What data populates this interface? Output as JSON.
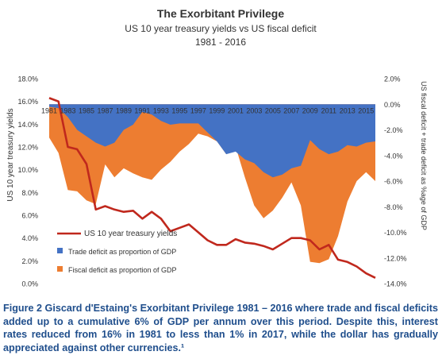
{
  "chart_data": {
    "type": "area+line",
    "title": "The Exorbitant Privilege",
    "subtitle": "US 10 year treasury yields vs US fiscal deficit",
    "subtitle2": "1981 - 2016",
    "ylabel_left": "US 10 year treasury yields",
    "ylabel_right": "US fiscal deficit + trade deficit as %age of GDP",
    "ylim_left": [
      0,
      18
    ],
    "ylim_right": [
      -14,
      2
    ],
    "yticks_left": [
      "0.0%",
      "2.0%",
      "4.0%",
      "6.0%",
      "8.0%",
      "10.0%",
      "12.0%",
      "14.0%",
      "16.0%",
      "18.0%"
    ],
    "yticks_right": [
      "-14.0%",
      "-12.0%",
      "-10.0%",
      "-8.0%",
      "-6.0%",
      "-4.0%",
      "-2.0%",
      "0.0%",
      "2.0%"
    ],
    "x": [
      1981,
      1982,
      1983,
      1984,
      1985,
      1986,
      1987,
      1988,
      1989,
      1990,
      1991,
      1992,
      1993,
      1994,
      1995,
      1996,
      1997,
      1998,
      1999,
      2000,
      2001,
      2002,
      2003,
      2004,
      2005,
      2006,
      2007,
      2008,
      2009,
      2010,
      2011,
      2012,
      2013,
      2014,
      2015,
      2016
    ],
    "xticks": [
      "1981",
      "1983",
      "1985",
      "1987",
      "1989",
      "1991",
      "1993",
      "1995",
      "1997",
      "1999",
      "2001",
      "2003",
      "2005",
      "2007",
      "2009",
      "2011",
      "2013",
      "2015"
    ],
    "series": [
      {
        "name": "US 10 year treasury yields",
        "axis": "left",
        "kind": "line",
        "color": "#c0281d",
        "values": [
          16.3,
          16.0,
          12.0,
          11.8,
          10.5,
          6.5,
          6.8,
          6.5,
          6.3,
          6.4,
          5.7,
          6.3,
          5.7,
          4.6,
          4.9,
          5.2,
          4.5,
          3.8,
          3.4,
          3.4,
          3.9,
          3.6,
          3.5,
          3.3,
          3.0,
          3.5,
          4.0,
          4.0,
          3.8,
          3.0,
          3.4,
          2.1,
          1.9,
          1.5,
          0.9,
          0.5
        ]
      },
      {
        "name": "Trade deficit as proportion of GDP",
        "axis": "right",
        "kind": "area",
        "color": "#4472c4",
        "values": [
          -0.2,
          -0.3,
          -1.0,
          -2.0,
          -2.5,
          -3.0,
          -3.3,
          -3.0,
          -2.0,
          -1.6,
          -0.6,
          -0.8,
          -1.3,
          -1.6,
          -1.5,
          -1.5,
          -1.5,
          -2.2,
          -2.9,
          -3.9,
          -3.7,
          -4.3,
          -4.6,
          -5.3,
          -5.7,
          -5.5,
          -5.0,
          -4.8,
          -2.8,
          -3.5,
          -3.9,
          -3.7,
          -3.2,
          -3.3,
          -3.0,
          -2.9
        ]
      },
      {
        "name": "Fiscal deficit as proportion of GDP",
        "axis": "right",
        "kind": "area",
        "color": "#ed7d31",
        "values": [
          -2.6,
          -3.8,
          -6.7,
          -6.8,
          -7.5,
          -7.8,
          -4.7,
          -5.7,
          -5.0,
          -5.4,
          -5.7,
          -5.9,
          -5.1,
          -4.5,
          -3.7,
          -3.1,
          -2.3,
          -2.5,
          -2.9,
          -3.9,
          -3.3,
          -5.7,
          -7.9,
          -8.9,
          -8.3,
          -7.3,
          -6.1,
          -7.9,
          -12.3,
          -12.4,
          -12.1,
          -10.3,
          -7.6,
          -6.0,
          -5.3,
          -6.0
        ]
      }
    ],
    "legend": "bottom-left, inside plot",
    "grid": false
  },
  "caption": "Figure 2 Giscard d'Estaing's Exorbitant Privilege 1981 – 2016 where trade and fiscal deficits added up to a cumulative 6% of GDP per annum over this period. Despite this, interest rates reduced from 16% in 1981 to less than 1% in 2017, while the dollar has gradually appreciated against other currencies.¹",
  "colors": {
    "text": "#333333",
    "axis": "#595959",
    "caption": "#1f4e8c"
  }
}
